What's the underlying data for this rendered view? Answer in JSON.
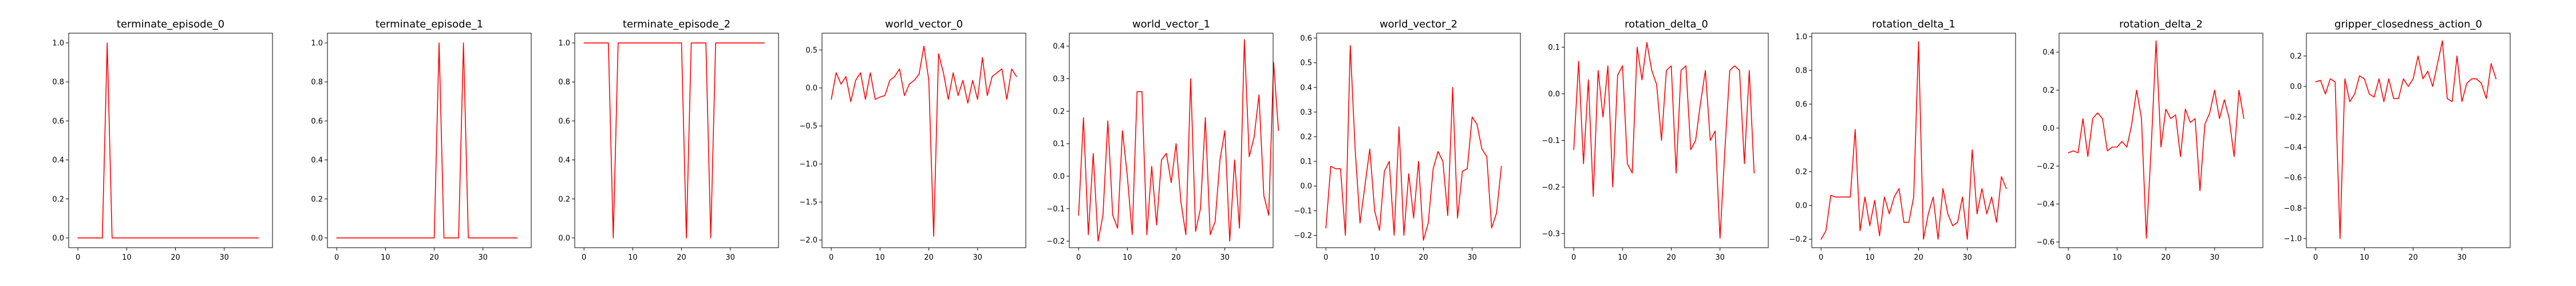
{
  "line_color": "#ff0000",
  "chart_data": [
    {
      "type": "line",
      "title": "terminate_episode_0",
      "xlim": [
        -1.9,
        39.9
      ],
      "ylim": [
        -0.05,
        1.05
      ],
      "xticks": [
        0,
        10,
        20,
        30
      ],
      "yticks": [
        0.0,
        0.2,
        0.4,
        0.6,
        0.8,
        1.0
      ],
      "xtick_labels": [
        "0",
        "10",
        "20",
        "30"
      ],
      "ytick_labels": [
        "0.0",
        "0.2",
        "0.4",
        "0.6",
        "0.8",
        "1.0"
      ],
      "grid": false,
      "series": [
        {
          "values": [
            0,
            0,
            0,
            0,
            0,
            0,
            1,
            0,
            0,
            0,
            0,
            0,
            0,
            0,
            0,
            0,
            0,
            0,
            0,
            0,
            0,
            0,
            0,
            0,
            0,
            0,
            0,
            0,
            0,
            0,
            0,
            0,
            0,
            0,
            0,
            0,
            0,
            0
          ]
        }
      ]
    },
    {
      "type": "line",
      "title": "terminate_episode_1",
      "xlim": [
        -1.9,
        39.9
      ],
      "ylim": [
        -0.05,
        1.05
      ],
      "xticks": [
        0,
        10,
        20,
        30
      ],
      "yticks": [
        0.0,
        0.2,
        0.4,
        0.6,
        0.8,
        1.0
      ],
      "xtick_labels": [
        "0",
        "10",
        "20",
        "30"
      ],
      "ytick_labels": [
        "0.0",
        "0.2",
        "0.4",
        "0.6",
        "0.8",
        "1.0"
      ],
      "grid": false,
      "series": [
        {
          "values": [
            0,
            0,
            0,
            0,
            0,
            0,
            0,
            0,
            0,
            0,
            0,
            0,
            0,
            0,
            0,
            0,
            0,
            0,
            0,
            0,
            0,
            1,
            0,
            0,
            0,
            0,
            1,
            0,
            0,
            0,
            0,
            0,
            0,
            0,
            0,
            0,
            0,
            0
          ]
        }
      ]
    },
    {
      "type": "line",
      "title": "terminate_episode_2",
      "xlim": [
        -1.9,
        39.9
      ],
      "ylim": [
        -0.05,
        1.05
      ],
      "xticks": [
        0,
        10,
        20,
        30
      ],
      "yticks": [
        0.0,
        0.2,
        0.4,
        0.6,
        0.8,
        1.0
      ],
      "xtick_labels": [
        "0",
        "10",
        "20",
        "30"
      ],
      "ytick_labels": [
        "0.0",
        "0.2",
        "0.4",
        "0.6",
        "0.8",
        "1.0"
      ],
      "grid": false,
      "series": [
        {
          "values": [
            1,
            1,
            1,
            1,
            1,
            1,
            0,
            1,
            1,
            1,
            1,
            1,
            1,
            1,
            1,
            1,
            1,
            1,
            1,
            1,
            1,
            0,
            1,
            1,
            1,
            1,
            0,
            1,
            1,
            1,
            1,
            1,
            1,
            1,
            1,
            1,
            1,
            1
          ]
        }
      ]
    },
    {
      "type": "line",
      "title": "world_vector_0",
      "xlim": [
        -1.9,
        39.9
      ],
      "ylim": [
        -2.1,
        0.72
      ],
      "xticks": [
        0,
        10,
        20,
        30
      ],
      "yticks": [
        -2.0,
        -1.5,
        -1.0,
        -0.5,
        0.0,
        0.5
      ],
      "xtick_labels": [
        "0",
        "10",
        "20",
        "30"
      ],
      "ytick_labels": [
        "−2.0",
        "−1.5",
        "−1.0",
        "−0.5",
        "0.0",
        "0.5"
      ],
      "grid": false,
      "series": [
        {
          "values": [
            -0.15,
            0.2,
            0.05,
            0.15,
            -0.18,
            0.1,
            0.2,
            -0.15,
            0.2,
            -0.15,
            -0.12,
            -0.1,
            0.1,
            0.15,
            0.25,
            -0.1,
            0.05,
            0.1,
            0.18,
            0.55,
            0.1,
            -1.95,
            0.45,
            0.2,
            -0.15,
            0.2,
            -0.1,
            0.1,
            -0.2,
            0.1,
            -0.15,
            0.4,
            -0.1,
            0.15,
            0.2,
            0.25,
            -0.15,
            0.25,
            0.15
          ]
        }
      ]
    },
    {
      "type": "line",
      "title": "world_vector_1",
      "xlim": [
        -1.9,
        39.9
      ],
      "ylim": [
        -0.22,
        0.44
      ],
      "xticks": [
        0,
        10,
        20,
        30
      ],
      "yticks": [
        -0.2,
        -0.1,
        0.0,
        0.1,
        0.2,
        0.3,
        0.4
      ],
      "xtick_labels": [
        "0",
        "10",
        "20",
        "30"
      ],
      "ytick_labels": [
        "−0.2",
        "−0.1",
        "0.0",
        "0.1",
        "0.2",
        "0.3",
        "0.4"
      ],
      "grid": false,
      "series": [
        {
          "values": [
            -0.12,
            0.18,
            -0.18,
            0.07,
            -0.2,
            -0.12,
            0.17,
            -0.12,
            -0.16,
            0.14,
            0.0,
            -0.18,
            0.26,
            0.26,
            -0.18,
            0.03,
            -0.15,
            0.05,
            0.07,
            -0.02,
            0.1,
            -0.08,
            -0.18,
            0.3,
            -0.17,
            -0.1,
            0.18,
            -0.18,
            -0.14,
            0.05,
            0.14,
            -0.2,
            0.05,
            -0.16,
            0.42,
            0.06,
            0.12,
            0.25,
            -0.06,
            -0.12,
            0.35,
            0.14
          ]
        }
      ]
    },
    {
      "type": "line",
      "title": "world_vector_2",
      "xlim": [
        -1.9,
        39.9
      ],
      "ylim": [
        -0.25,
        0.62
      ],
      "xticks": [
        0,
        10,
        20,
        30
      ],
      "yticks": [
        -0.2,
        -0.1,
        0.0,
        0.1,
        0.2,
        0.3,
        0.4,
        0.5,
        0.6
      ],
      "xtick_labels": [
        "0",
        "10",
        "20",
        "30"
      ],
      "ytick_labels": [
        "−0.2",
        "−0.1",
        "0.0",
        "0.1",
        "0.2",
        "0.3",
        "0.4",
        "0.5",
        "0.6"
      ],
      "grid": false,
      "series": [
        {
          "values": [
            -0.17,
            0.08,
            0.07,
            0.07,
            -0.2,
            0.57,
            0.15,
            -0.15,
            0.0,
            0.15,
            -0.1,
            -0.18,
            0.06,
            0.1,
            -0.2,
            0.24,
            -0.2,
            0.05,
            -0.13,
            0.1,
            -0.22,
            -0.15,
            0.07,
            0.14,
            0.1,
            -0.12,
            0.4,
            -0.13,
            0.06,
            0.07,
            0.28,
            0.25,
            0.15,
            0.12,
            -0.17,
            -0.11,
            0.08
          ]
        }
      ]
    },
    {
      "type": "line",
      "title": "rotation_delta_0",
      "xlim": [
        -1.9,
        39.9
      ],
      "ylim": [
        -0.33,
        0.13
      ],
      "xticks": [
        0,
        10,
        20,
        30
      ],
      "yticks": [
        -0.3,
        -0.2,
        -0.1,
        0.0,
        0.1
      ],
      "xtick_labels": [
        "0",
        "10",
        "20",
        "30"
      ],
      "ytick_labels": [
        "−0.3",
        "−0.2",
        "−0.1",
        "0.0",
        "0.1"
      ],
      "grid": false,
      "series": [
        {
          "values": [
            -0.12,
            0.07,
            -0.15,
            0.03,
            -0.22,
            0.05,
            -0.05,
            0.06,
            -0.2,
            0.04,
            0.06,
            -0.15,
            -0.17,
            0.1,
            0.03,
            0.11,
            0.05,
            0.02,
            -0.1,
            0.05,
            0.06,
            -0.17,
            0.05,
            0.06,
            -0.12,
            -0.1,
            -0.02,
            0.05,
            -0.1,
            -0.08,
            -0.31,
            -0.12,
            0.05,
            0.06,
            0.05,
            -0.15,
            0.05,
            -0.17
          ]
        }
      ]
    },
    {
      "type": "line",
      "title": "rotation_delta_1",
      "xlim": [
        -1.9,
        39.9
      ],
      "ylim": [
        -0.25,
        1.02
      ],
      "xticks": [
        0,
        10,
        20,
        30
      ],
      "yticks": [
        -0.2,
        0.0,
        0.2,
        0.4,
        0.6,
        0.8,
        1.0
      ],
      "xtick_labels": [
        "0",
        "10",
        "20",
        "30"
      ],
      "ytick_labels": [
        "−0.2",
        "0.0",
        "0.2",
        "0.4",
        "0.6",
        "0.8",
        "1.0"
      ],
      "grid": false,
      "series": [
        {
          "values": [
            -0.2,
            -0.15,
            0.06,
            0.05,
            0.05,
            0.05,
            0.05,
            0.45,
            -0.15,
            0.05,
            -0.12,
            0.03,
            -0.18,
            0.05,
            -0.05,
            0.05,
            0.1,
            -0.1,
            -0.1,
            0.05,
            0.97,
            -0.2,
            -0.05,
            0.05,
            -0.2,
            0.1,
            -0.05,
            -0.12,
            -0.1,
            0.05,
            -0.2,
            0.33,
            -0.05,
            0.1,
            -0.05,
            0.05,
            -0.1,
            0.17,
            0.1
          ]
        }
      ]
    },
    {
      "type": "line",
      "title": "rotation_delta_2",
      "xlim": [
        -1.9,
        39.9
      ],
      "ylim": [
        -0.63,
        0.5
      ],
      "xticks": [
        0,
        10,
        20,
        30
      ],
      "yticks": [
        -0.6,
        -0.4,
        -0.2,
        0.0,
        0.2,
        0.4
      ],
      "xtick_labels": [
        "0",
        "10",
        "20",
        "30"
      ],
      "ytick_labels": [
        "−0.6",
        "−0.4",
        "−0.2",
        "0.0",
        "0.2",
        "0.4"
      ],
      "grid": false,
      "series": [
        {
          "values": [
            -0.13,
            -0.12,
            -0.13,
            0.05,
            -0.15,
            0.05,
            0.08,
            0.05,
            -0.12,
            -0.1,
            -0.1,
            -0.07,
            -0.1,
            0.02,
            0.2,
            0.05,
            -0.58,
            -0.1,
            0.46,
            -0.1,
            0.1,
            0.05,
            0.07,
            -0.15,
            0.1,
            0.03,
            0.05,
            -0.33,
            0.02,
            0.08,
            0.2,
            0.05,
            0.15,
            0.05,
            -0.15,
            0.2,
            0.05
          ]
        }
      ]
    },
    {
      "type": "line",
      "title": "gripper_closedness_action_0",
      "xlim": [
        -1.9,
        39.9
      ],
      "ylim": [
        -1.06,
        0.35
      ],
      "xticks": [
        0,
        10,
        20,
        30
      ],
      "yticks": [
        -1.0,
        -0.8,
        -0.6,
        -0.4,
        -0.2,
        0.0,
        0.2
      ],
      "xtick_labels": [
        "0",
        "10",
        "20",
        "30"
      ],
      "ytick_labels": [
        "−1.0",
        "−0.8",
        "−0.6",
        "−0.4",
        "−0.2",
        "0.0",
        "0.2"
      ],
      "grid": false,
      "series": [
        {
          "values": [
            0.03,
            0.04,
            -0.05,
            0.05,
            0.03,
            -1.0,
            0.05,
            -0.1,
            -0.05,
            0.07,
            0.05,
            -0.05,
            -0.07,
            0.05,
            -0.1,
            0.05,
            -0.08,
            -0.08,
            0.05,
            0.0,
            0.05,
            0.2,
            0.05,
            0.1,
            0.0,
            0.15,
            0.3,
            -0.08,
            -0.1,
            0.2,
            -0.1,
            0.02,
            0.05,
            0.05,
            0.02,
            -0.08,
            0.15,
            0.05
          ]
        }
      ]
    }
  ]
}
